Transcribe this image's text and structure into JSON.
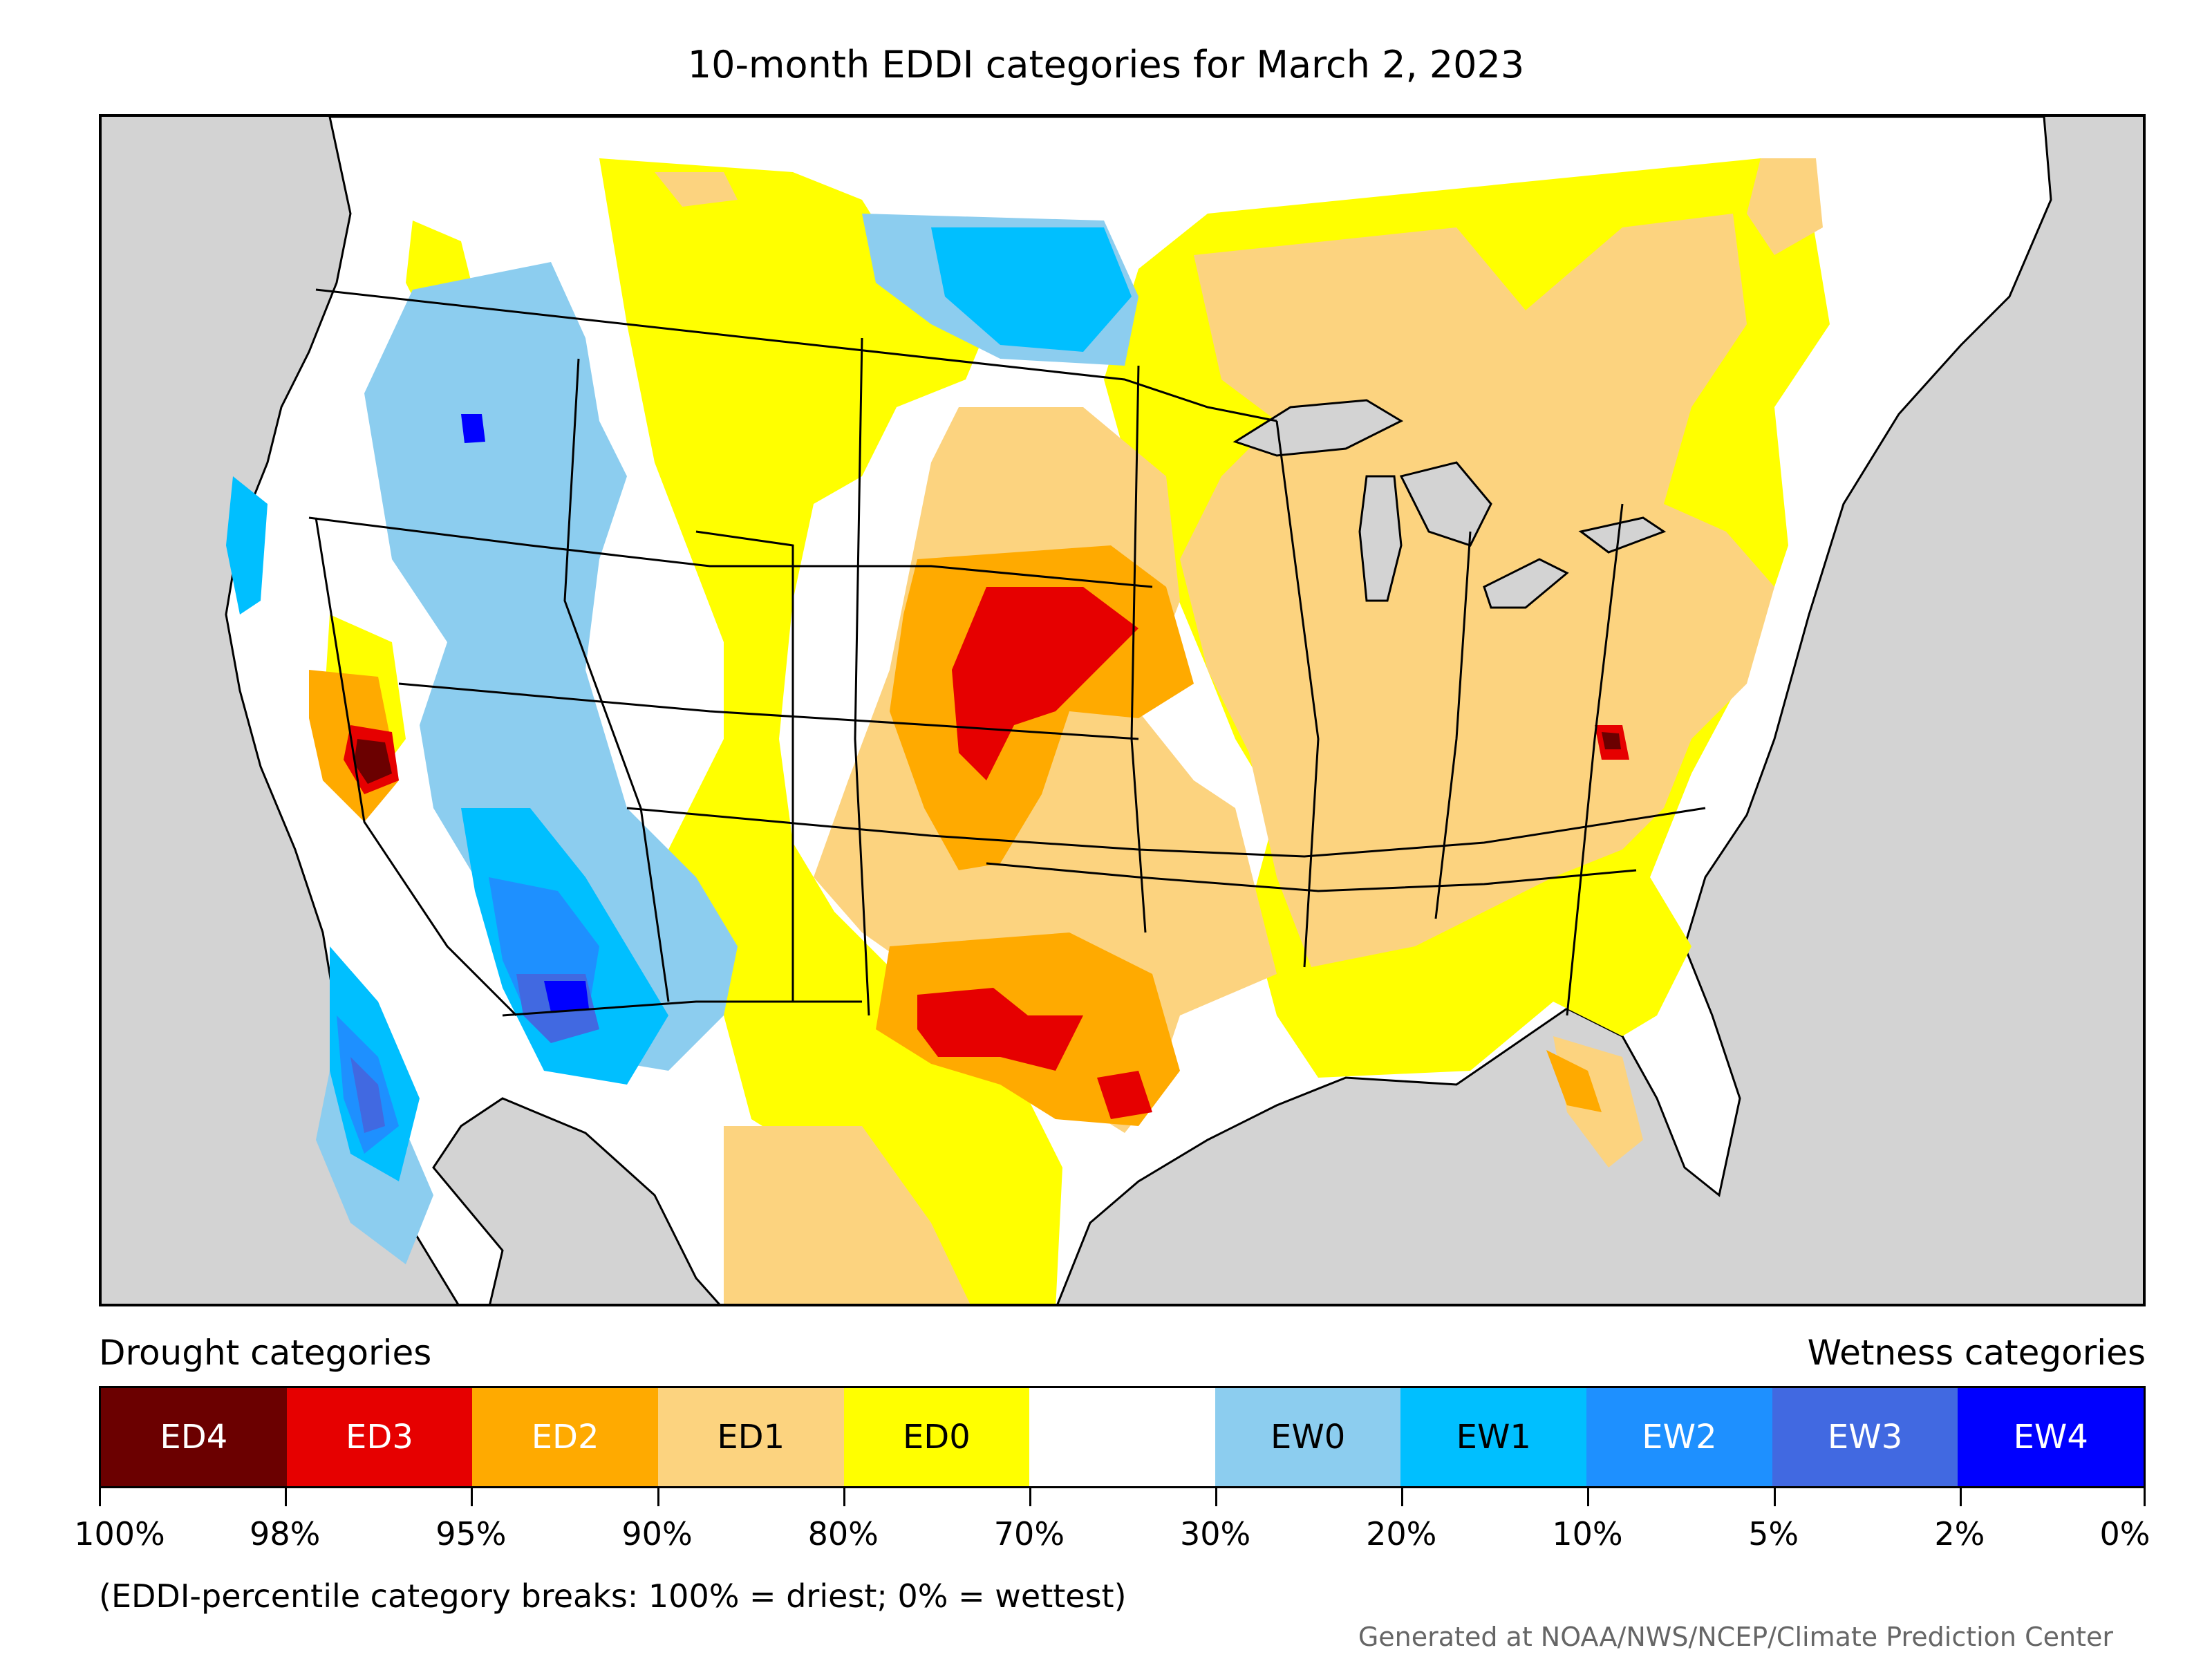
{
  "title": "10-month EDDI categories for March 2, 2023",
  "legend": {
    "drought_heading": "Drought categories",
    "wetness_heading": "Wetness categories",
    "categories": [
      {
        "label": "ED4",
        "color": "#6b0000",
        "text_color": "#ffffff"
      },
      {
        "label": "ED3",
        "color": "#e60000",
        "text_color": "#ffffff"
      },
      {
        "label": "ED2",
        "color": "#ffaa00",
        "text_color": "#ffffff"
      },
      {
        "label": "ED1",
        "color": "#fcd37f",
        "text_color": "#000000"
      },
      {
        "label": "ED0",
        "color": "#ffff00",
        "text_color": "#000000"
      },
      {
        "label": "",
        "color": "#ffffff",
        "text_color": "#000000"
      },
      {
        "label": "EW0",
        "color": "#8ccdef",
        "text_color": "#000000"
      },
      {
        "label": "EW1",
        "color": "#00bfff",
        "text_color": "#000000"
      },
      {
        "label": "EW2",
        "color": "#1e90ff",
        "text_color": "#ffffff"
      },
      {
        "label": "EW3",
        "color": "#4169e1",
        "text_color": "#ffffff"
      },
      {
        "label": "EW4",
        "color": "#0000ff",
        "text_color": "#ffffff"
      }
    ],
    "breaks": [
      "100%",
      "98%",
      "95%",
      "90%",
      "80%",
      "70%",
      "30%",
      "20%",
      "10%",
      "5%",
      "2%",
      "0%"
    ]
  },
  "note": "(EDDI-percentile category breaks: 100% = driest; 0% = wettest)",
  "credit": "Generated at NOAA/NWS/NCEP/Climate Prediction Center"
}
